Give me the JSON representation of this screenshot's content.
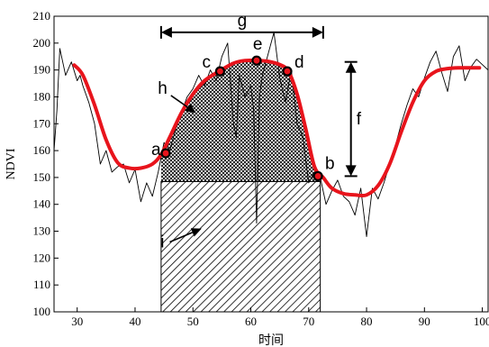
{
  "chart_data": {
    "type": "line",
    "title": "",
    "xlabel": "时间",
    "ylabel": "NDVI",
    "xlim": [
      26,
      101
    ],
    "ylim": [
      100,
      210
    ],
    "xticks": [
      "30",
      "40",
      "50",
      "60",
      "70",
      "80",
      "90",
      "100"
    ],
    "yticks": [
      "100",
      "110",
      "120",
      "130",
      "140",
      "150",
      "160",
      "170",
      "180",
      "190",
      "200",
      "210"
    ],
    "grid": false,
    "legend": "none",
    "raw_series": {
      "color": "#000000",
      "x": [
        26,
        26.5,
        27,
        27.5,
        28,
        29,
        30,
        30.5,
        31,
        32,
        33,
        34,
        35,
        36,
        37,
        38,
        39,
        40,
        41,
        42,
        43,
        44,
        45,
        46,
        47,
        48,
        49,
        50,
        51,
        52,
        53,
        54,
        55,
        56,
        57,
        57.5,
        58,
        59,
        60,
        60.5,
        61,
        61.5,
        62,
        63,
        64,
        65,
        66,
        67,
        68,
        69,
        70,
        71,
        72,
        73,
        74,
        75,
        76,
        77,
        78,
        79,
        80,
        81,
        82,
        83,
        84,
        85,
        86,
        87,
        88,
        89,
        90,
        91,
        92,
        93,
        94,
        95,
        96,
        97,
        98,
        99,
        100,
        101
      ],
      "y": [
        160,
        175,
        198,
        193,
        188,
        193,
        186,
        188,
        184,
        178,
        170,
        155,
        160,
        152,
        154,
        155,
        148,
        153,
        141,
        148,
        143,
        152,
        163,
        160,
        168,
        174,
        180,
        183,
        188,
        184,
        190,
        186,
        195,
        200,
        170,
        165,
        188,
        180,
        184,
        175,
        133,
        180,
        188,
        196,
        204,
        187,
        178,
        190,
        170,
        165,
        148,
        152,
        150,
        140,
        145,
        149,
        143,
        141,
        136,
        146,
        128,
        146,
        142,
        148,
        155,
        162,
        170,
        177,
        183,
        180,
        187,
        193,
        197,
        189,
        182,
        195,
        199,
        186,
        191,
        194,
        192,
        190
      ]
    },
    "fitted_series": {
      "color": "#e8141c",
      "x": [
        29.5,
        31,
        33,
        35,
        37,
        39,
        41,
        43,
        44.5,
        46,
        48,
        50,
        52,
        54.5,
        57,
        59,
        61,
        63,
        65,
        66.5,
        68,
        69.5,
        71,
        72.5,
        74,
        76,
        78,
        80,
        82,
        84,
        86,
        88,
        90,
        92,
        94,
        96,
        98,
        99.5
      ],
      "y": [
        191.8,
        188,
        177,
        164,
        155.5,
        153.5,
        153.5,
        155,
        158.5,
        165,
        174,
        181,
        186,
        189.5,
        192.5,
        193.5,
        193.5,
        193.2,
        192,
        189.5,
        181,
        168,
        154,
        150,
        146,
        144,
        143.5,
        143.5,
        147,
        155,
        167,
        178,
        186,
        189.5,
        190.5,
        190.8,
        190.8,
        190.8
      ]
    },
    "key_points": [
      {
        "label": "a",
        "x": 45.3,
        "y": 159
      },
      {
        "label": "c",
        "x": 54.7,
        "y": 189.5
      },
      {
        "label": "e",
        "x": 61.0,
        "y": 193.5
      },
      {
        "label": "d",
        "x": 66.3,
        "y": 189.5
      },
      {
        "label": "b",
        "x": 71.6,
        "y": 150.5
      }
    ],
    "region_h": {
      "label": "h",
      "x_start": 44.5,
      "x_end": 72.0,
      "y_base": 148.5,
      "pattern": "crosshatch"
    },
    "region_i": {
      "label": "i",
      "x_start": 44.5,
      "x_end": 72.0,
      "y_bottom": 100,
      "y_top": 148.5,
      "pattern": "diagonal"
    },
    "annotation_g": {
      "label": "g",
      "x_start": 44.5,
      "x_end": 72.5,
      "y": 204
    },
    "annotation_f": {
      "label": "f",
      "x": 77.3,
      "y_low": 150.5,
      "y_high": 193
    },
    "arrow_h": {
      "label": "h",
      "from": [
        46.2,
        180.5
      ],
      "to": [
        50.5,
        174
      ]
    },
    "arrow_i": {
      "label": "i",
      "from": [
        46,
        126
      ],
      "to": [
        51.5,
        131
      ]
    }
  }
}
